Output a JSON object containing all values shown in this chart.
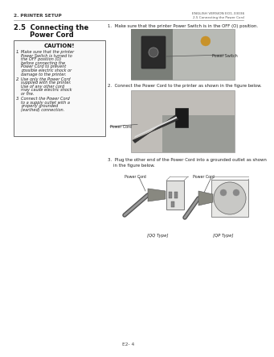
{
  "page_bg": "#ffffff",
  "header_left": "2. PRINTER SETUP",
  "header_right_top": "ENGLISH VERSION EO1-33036",
  "header_right_bot": "2.5 Connecting the Power Cord",
  "section_line1": "2.5  Connecting the",
  "section_line2": "       Power Cord",
  "caution_title": "CAUTION!",
  "step1_text": "1.  Make sure that the printer Power Switch is in the OFF (O) position.",
  "step2_text": "2.  Connect the Power Cord to the printer as shown in the figure below.",
  "step3_line1": "3.  Plug the other end of the Power Cord into a grounded outlet as shown",
  "step3_line2": "    in the figure below.",
  "label_power_switch": "Power Switch",
  "label_power_cord1": "Power Cord",
  "label_power_cord2": "Power Cord",
  "label_power_cord3": "Power Cord",
  "label_qq": "[QQ Type]",
  "label_qp": "[QP Type]",
  "footer": "E2- 4",
  "caution_text1_lines": [
    "Make sure that the printer",
    "Power Switch is turned to",
    "the OFF position (O)",
    "before connecting the",
    "Power Cord to prevent",
    "possible electric shock or",
    "damage to the printer."
  ],
  "caution_text2_lines": [
    "Use only the Power Cord",
    "supplied with the printer.",
    "Use of any other cord",
    "may cause electric shock",
    "or fire."
  ],
  "caution_text3_lines": [
    "Connect the Power Cord",
    "to a supply outlet with a",
    "properly grounded",
    "(earthed) connection."
  ]
}
